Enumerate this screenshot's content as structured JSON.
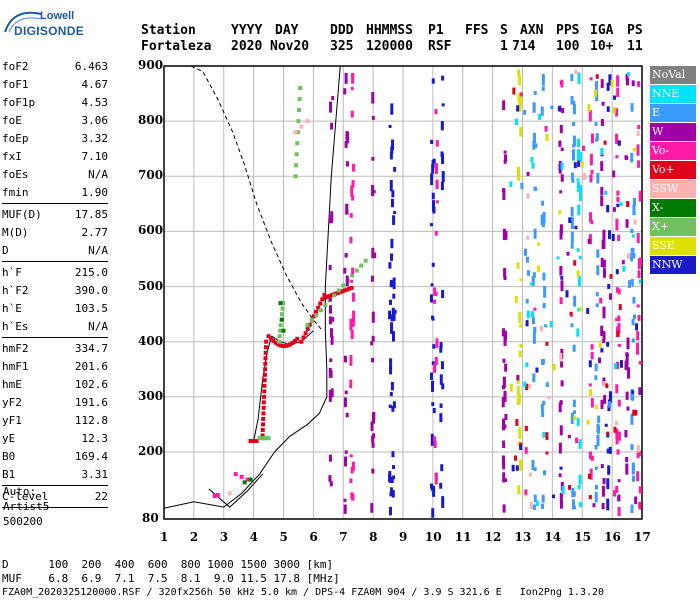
{
  "logo": {
    "line1": "Lowell",
    "line2": "DIGISONDE"
  },
  "header": {
    "labels": [
      "Station",
      "YYYY",
      "DAY",
      "DDD",
      "HHMMSS",
      "P1",
      "FFS",
      "S",
      "AXN",
      "PPS",
      "IGA",
      "PS"
    ],
    "values": [
      "Fortaleza",
      "2020",
      "Nov20",
      "325",
      "120000",
      "RSF",
      "1",
      "714",
      "100",
      "10+",
      "11"
    ]
  },
  "params": {
    "group1": [
      {
        "name": "foF2",
        "value": "6.463"
      },
      {
        "name": "foF1",
        "value": "4.67"
      },
      {
        "name": "foF1p",
        "value": "4.53"
      },
      {
        "name": "foE",
        "value": "3.06"
      },
      {
        "name": "foEp",
        "value": "3.32"
      },
      {
        "name": "fxI",
        "value": "7.10"
      },
      {
        "name": "foEs",
        "value": "N/A"
      },
      {
        "name": "fmin",
        "value": "1.90"
      }
    ],
    "group2": [
      {
        "name": "MUF(D)",
        "value": "17.85"
      },
      {
        "name": "M(D)",
        "value": "2.77"
      },
      {
        "name": "D",
        "value": "N/A"
      }
    ],
    "group3": [
      {
        "name": "h`F",
        "value": "215.0"
      },
      {
        "name": "h`F2",
        "value": "390.0"
      },
      {
        "name": "h`E",
        "value": "103.5"
      },
      {
        "name": "h`Es",
        "value": "N/A"
      }
    ],
    "group4": [
      {
        "name": "hmF2",
        "value": "334.7"
      },
      {
        "name": "hmF1",
        "value": "201.6"
      },
      {
        "name": "hmE",
        "value": "102.6"
      },
      {
        "name": "yF2",
        "value": "191.6"
      },
      {
        "name": "yF1",
        "value": "112.8"
      },
      {
        "name": "yE",
        "value": "12.3"
      },
      {
        "name": "B0",
        "value": "169.4"
      },
      {
        "name": "B1",
        "value": "3.31"
      }
    ],
    "group5": [
      {
        "name": "C-level",
        "value": "22"
      }
    ]
  },
  "auto": {
    "line1": "Auto:",
    "line2": "Artist5",
    "line3": "500200"
  },
  "legend": [
    {
      "label": "NoVal",
      "color": "#808080"
    },
    {
      "label": "NNE",
      "color": "#00e0ff"
    },
    {
      "label": "E",
      "color": "#3a9bff"
    },
    {
      "label": "W",
      "color": "#a000a8"
    },
    {
      "label": "Vo-",
      "color": "#ff1aa8"
    },
    {
      "label": "Vo+",
      "color": "#e0001a"
    },
    {
      "label": "SSW",
      "color": "#ffb0b0"
    },
    {
      "label": "X-",
      "color": "#007a00"
    },
    {
      "label": "X+",
      "color": "#70c060"
    },
    {
      "label": "SSE",
      "color": "#e0e000"
    },
    {
      "label": "NNW",
      "color": "#1a1acc"
    }
  ],
  "axes": {
    "x_ticks": [
      "1",
      "2",
      "3",
      "4",
      "5",
      "6",
      "7",
      "8",
      "9",
      "10",
      "11",
      "12",
      "13",
      "14",
      "15",
      "16",
      "17"
    ],
    "y_ticks": [
      "900",
      "800",
      "700",
      "600",
      "500",
      "400",
      "300",
      "200",
      "80"
    ]
  },
  "footer": {
    "d_line": "D      100  200  400  600  800 1000 1500 3000 [km]",
    "muf_line": "MUF    6.8  6.9  7.1  7.5  8.1  9.0 11.5 17.8 [MHz]",
    "file_line": "FZA0M_2020325120000.RSF / 320fx256h 50 kHz 5.0 km / DPS-4 FZA0M 904 / 3.9 S 321.6 E   Ion2Png 1.3.20"
  }
}
